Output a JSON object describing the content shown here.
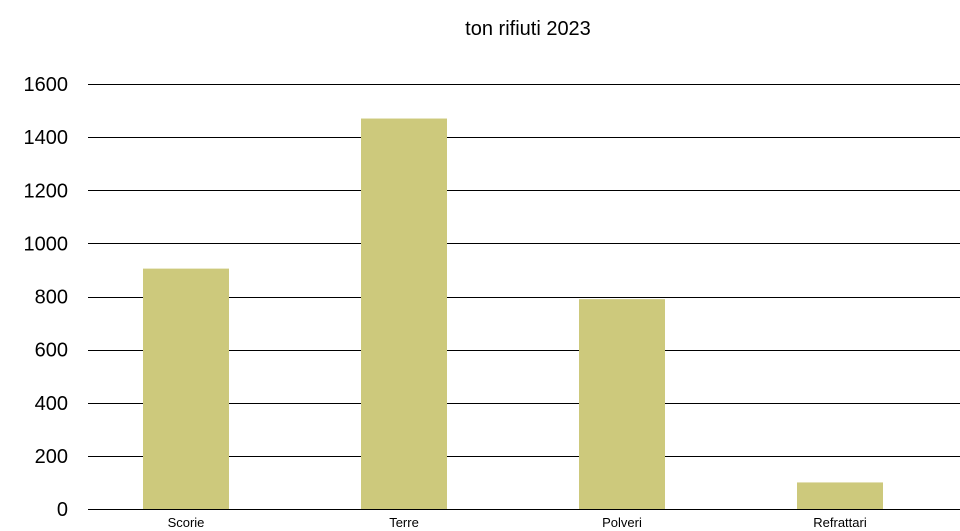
{
  "chart_data": {
    "type": "bar",
    "title": "ton rifiuti 2023",
    "categories": [
      "Scorie",
      "Terre",
      "Polveri",
      "Refrattari"
    ],
    "series": [
      {
        "values": [
          905,
          1470,
          790,
          100
        ],
        "color": "#cdc97c"
      }
    ],
    "xlabel": "",
    "ylabel": "",
    "ylim": [
      0,
      1600
    ],
    "yticks": [
      0,
      200,
      400,
      600,
      800,
      1000,
      1200,
      1400,
      1600
    ],
    "grid": true,
    "legend": "none"
  }
}
